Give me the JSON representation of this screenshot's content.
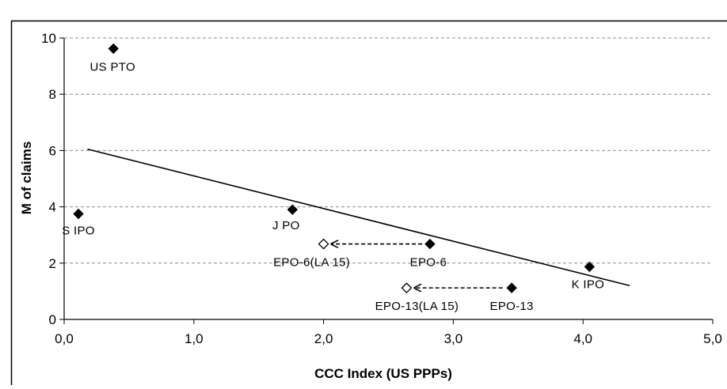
{
  "chart_data": {
    "type": "scatter",
    "title": "",
    "xlabel": "CCC Index (US PPPs)",
    "ylabel": "M of claims",
    "xlim": [
      0,
      5
    ],
    "ylim": [
      0,
      10
    ],
    "x_ticks": [
      "0,0",
      "1,0",
      "2,0",
      "3,0",
      "4,0",
      "5,0"
    ],
    "y_ticks": [
      "0",
      "2",
      "4",
      "6",
      "8",
      "10"
    ],
    "grid": "horizontal dashed",
    "legend": "none",
    "points": [
      {
        "label": "US PTO",
        "x": 0.38,
        "y": 9.62,
        "marker": "filled"
      },
      {
        "label": "S IPO",
        "x": 0.11,
        "y": 3.75,
        "marker": "filled"
      },
      {
        "label": "J PO",
        "x": 1.76,
        "y": 3.9,
        "marker": "filled"
      },
      {
        "label": "EPO-6",
        "x": 2.82,
        "y": 2.68,
        "marker": "filled"
      },
      {
        "label": "EPO-6(LA 15)",
        "x": 2.0,
        "y": 2.68,
        "marker": "hollow"
      },
      {
        "label": "EPO-13",
        "x": 3.45,
        "y": 1.12,
        "marker": "filled"
      },
      {
        "label": "EPO-13(LA 15)",
        "x": 2.64,
        "y": 1.12,
        "marker": "hollow"
      },
      {
        "label": "K IPO",
        "x": 4.05,
        "y": 1.87,
        "marker": "filled"
      }
    ],
    "trendline": {
      "x": [
        0.18,
        4.36
      ],
      "y": [
        6.05,
        1.2
      ]
    },
    "arrows": [
      {
        "from": [
          2.76,
          2.68
        ],
        "to": [
          2.06,
          2.68
        ]
      },
      {
        "from": [
          3.38,
          1.12
        ],
        "to": [
          2.7,
          1.12
        ]
      }
    ]
  }
}
